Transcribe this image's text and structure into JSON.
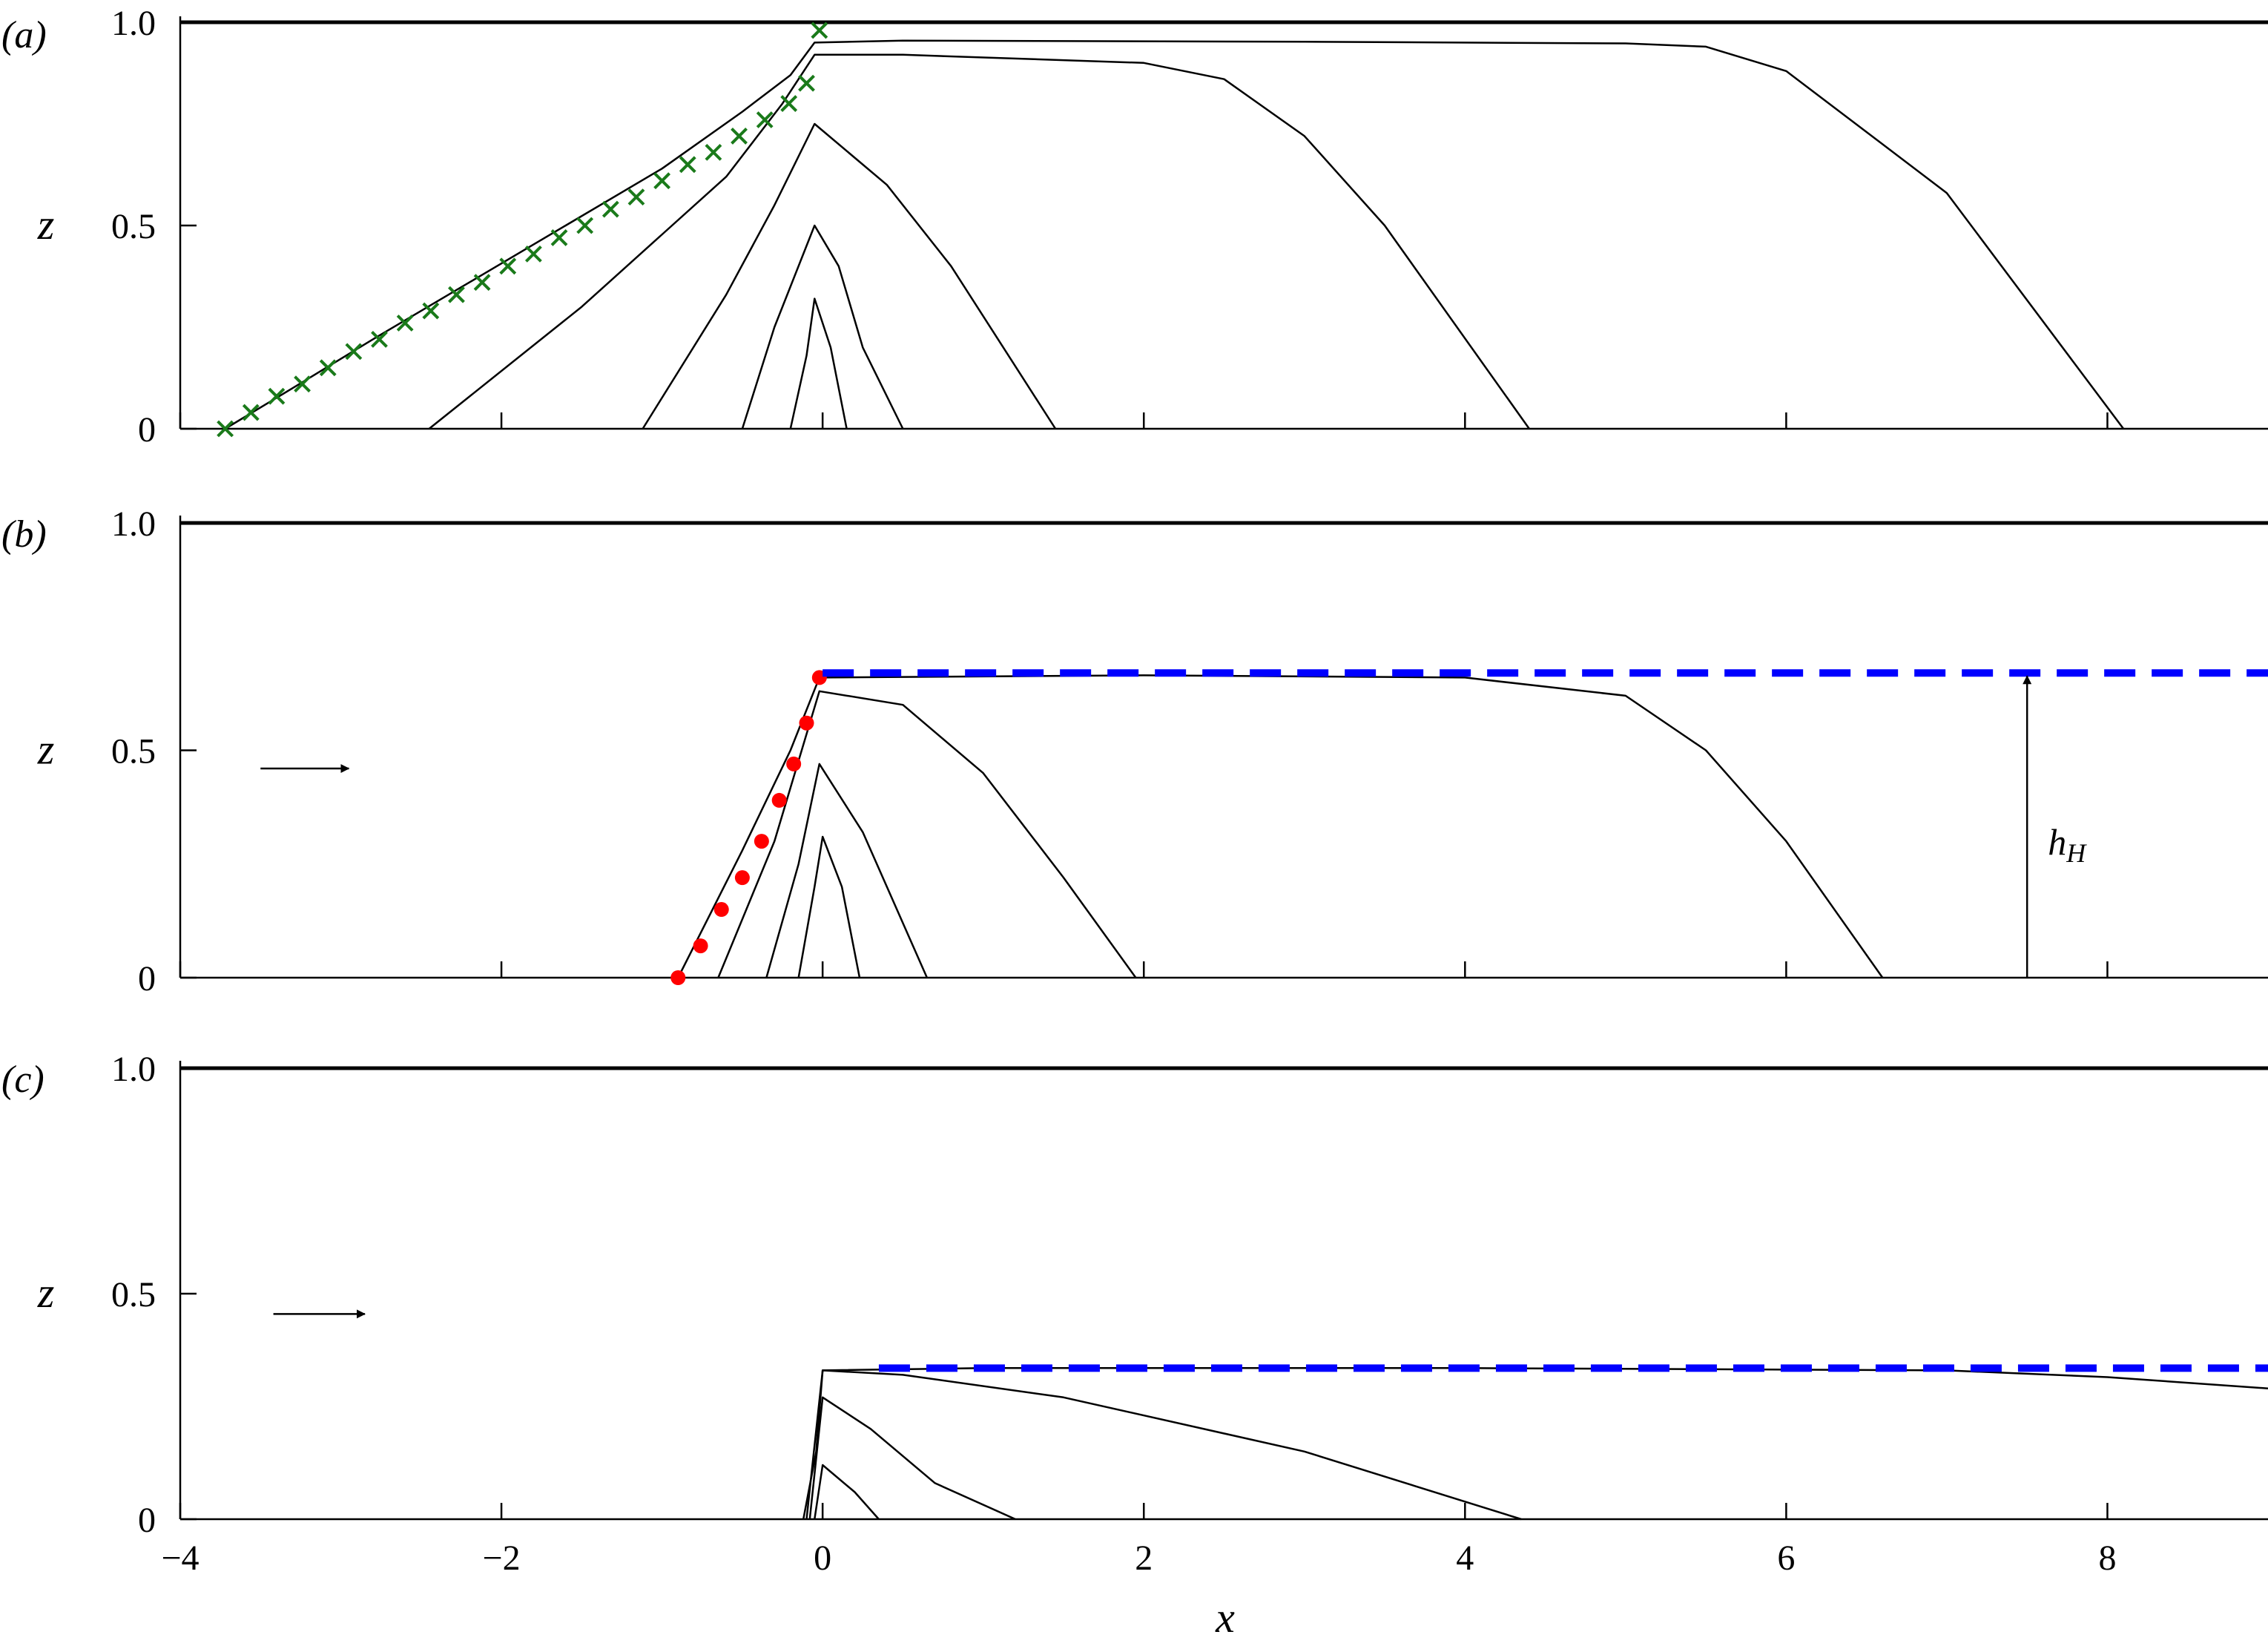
{
  "figure": {
    "xlabel": "x",
    "xticks": [
      "−4",
      "−2",
      "0",
      "2",
      "4",
      "6",
      "8"
    ],
    "xtick_values": [
      -4,
      -2,
      0,
      2,
      4,
      6,
      8
    ],
    "xlim": [
      -4,
      9
    ],
    "colors": {
      "curves": "#000000",
      "crosses": "#1a7a1a",
      "dots": "#ff0000",
      "dashed": "#0000ff"
    }
  },
  "chart_data": [
    {
      "type": "line",
      "panel_label": "(a)",
      "ylabel": "z",
      "yticks": [
        "0",
        "0.5",
        "1.0"
      ],
      "ytick_values": [
        0,
        0.5,
        1.0
      ],
      "ylim": [
        0,
        1.0
      ],
      "top_boundary": 1.0,
      "series": [
        {
          "kind": "curve",
          "points": [
            [
              -3.72,
              0
            ],
            [
              -3.3,
              0.1
            ],
            [
              -2.8,
              0.22
            ],
            [
              -2.2,
              0.36
            ],
            [
              -1.6,
              0.5
            ],
            [
              -1,
              0.64
            ],
            [
              -0.5,
              0.78
            ],
            [
              -0.2,
              0.87
            ],
            [
              -0.05,
              0.95
            ],
            [
              0.5,
              0.955
            ],
            [
              3,
              0.952
            ],
            [
              5,
              0.948
            ],
            [
              5.5,
              0.94
            ],
            [
              6,
              0.88
            ],
            [
              7,
              0.58
            ],
            [
              8.1,
              0
            ]
          ]
        },
        {
          "kind": "curve",
          "points": [
            [
              -2.45,
              0
            ],
            [
              -1.5,
              0.3
            ],
            [
              -0.6,
              0.62
            ],
            [
              -0.25,
              0.8
            ],
            [
              -0.05,
              0.92
            ],
            [
              0.5,
              0.92
            ],
            [
              2,
              0.9
            ],
            [
              2.5,
              0.86
            ],
            [
              3,
              0.72
            ],
            [
              3.5,
              0.5
            ],
            [
              4.4,
              0
            ]
          ]
        },
        {
          "kind": "curve",
          "points": [
            [
              -1.12,
              0
            ],
            [
              -0.6,
              0.33
            ],
            [
              -0.3,
              0.55
            ],
            [
              -0.05,
              0.75
            ],
            [
              0.4,
              0.6
            ],
            [
              0.8,
              0.4
            ],
            [
              1.45,
              0
            ]
          ]
        },
        {
          "kind": "curve",
          "points": [
            [
              -0.5,
              0
            ],
            [
              -0.3,
              0.25
            ],
            [
              -0.05,
              0.5
            ],
            [
              0.1,
              0.4
            ],
            [
              0.25,
              0.2
            ],
            [
              0.5,
              0
            ]
          ]
        },
        {
          "kind": "curve",
          "points": [
            [
              -0.2,
              0
            ],
            [
              -0.1,
              0.18
            ],
            [
              -0.05,
              0.32
            ],
            [
              0.05,
              0.2
            ],
            [
              0.15,
              0
            ]
          ]
        },
        {
          "kind": "crosses",
          "points": [
            [
              -3.72,
              0
            ],
            [
              -3.56,
              0.04
            ],
            [
              -3.4,
              0.08
            ],
            [
              -3.24,
              0.11
            ],
            [
              -3.08,
              0.15
            ],
            [
              -2.92,
              0.19
            ],
            [
              -2.76,
              0.22
            ],
            [
              -2.6,
              0.26
            ],
            [
              -2.44,
              0.29
            ],
            [
              -2.28,
              0.33
            ],
            [
              -2.12,
              0.36
            ],
            [
              -1.96,
              0.4
            ],
            [
              -1.8,
              0.43
            ],
            [
              -1.64,
              0.47
            ],
            [
              -1.48,
              0.5
            ],
            [
              -1.32,
              0.54
            ],
            [
              -1.16,
              0.57
            ],
            [
              -1,
              0.61
            ],
            [
              -0.84,
              0.65
            ],
            [
              -0.68,
              0.68
            ],
            [
              -0.52,
              0.72
            ],
            [
              -0.36,
              0.76
            ],
            [
              -0.21,
              0.8
            ],
            [
              -0.1,
              0.85
            ],
            [
              -0.02,
              0.98
            ]
          ]
        }
      ]
    },
    {
      "type": "line",
      "panel_label": "(b)",
      "ylabel": "z",
      "yticks": [
        "0",
        "0.5",
        "1.0"
      ],
      "ytick_values": [
        0,
        0.5,
        1.0
      ],
      "ylim": [
        0,
        1.0
      ],
      "top_boundary": 1.0,
      "h_level": 0.67,
      "annotation": "h",
      "annotation_sub": "H",
      "annotation_x": 7.5,
      "flow_arrow": {
        "x_from": -3.5,
        "x_to": -2.95,
        "z": 0.46
      },
      "series": [
        {
          "kind": "curve",
          "points": [
            [
              -0.9,
              0
            ],
            [
              -0.5,
              0.28
            ],
            [
              -0.2,
              0.5
            ],
            [
              -0.02,
              0.66
            ],
            [
              2,
              0.665
            ],
            [
              4,
              0.66
            ],
            [
              5,
              0.62
            ],
            [
              5.5,
              0.5
            ],
            [
              6,
              0.3
            ],
            [
              6.6,
              0
            ]
          ]
        },
        {
          "kind": "curve",
          "points": [
            [
              -0.65,
              0
            ],
            [
              -0.3,
              0.3
            ],
            [
              -0.02,
              0.63
            ],
            [
              0.5,
              0.6
            ],
            [
              1,
              0.45
            ],
            [
              1.5,
              0.22
            ],
            [
              1.95,
              0
            ]
          ]
        },
        {
          "kind": "curve",
          "points": [
            [
              -0.35,
              0
            ],
            [
              -0.15,
              0.25
            ],
            [
              -0.02,
              0.47
            ],
            [
              0.25,
              0.32
            ],
            [
              0.65,
              0
            ]
          ]
        },
        {
          "kind": "curve",
          "points": [
            [
              -0.15,
              0
            ],
            [
              -0.05,
              0.2
            ],
            [
              0,
              0.31
            ],
            [
              0.12,
              0.2
            ],
            [
              0.23,
              0
            ]
          ]
        },
        {
          "kind": "dots",
          "points": [
            [
              -0.9,
              0
            ],
            [
              -0.76,
              0.07
            ],
            [
              -0.63,
              0.15
            ],
            [
              -0.5,
              0.22
            ],
            [
              -0.38,
              0.3
            ],
            [
              -0.27,
              0.39
            ],
            [
              -0.18,
              0.47
            ],
            [
              -0.1,
              0.56
            ],
            [
              -0.02,
              0.66
            ]
          ]
        },
        {
          "kind": "dashed",
          "points": [
            [
              0,
              0.67
            ],
            [
              9,
              0.67
            ]
          ]
        }
      ]
    },
    {
      "type": "line",
      "panel_label": "(c)",
      "ylabel": "z",
      "yticks": [
        "0",
        "0.5",
        "1.0"
      ],
      "ytick_values": [
        0,
        0.5,
        1.0
      ],
      "ylim": [
        0,
        1.0
      ],
      "top_boundary": 1.0,
      "h_level": 0.335,
      "flow_arrow": {
        "x_from": -3.42,
        "x_to": -2.85,
        "z": 0.455
      },
      "series": [
        {
          "kind": "curve",
          "points": [
            [
              -0.12,
              0
            ],
            [
              -0.04,
              0.15
            ],
            [
              0,
              0.33
            ],
            [
              1,
              0.335
            ],
            [
              4,
              0.335
            ],
            [
              7,
              0.33
            ],
            [
              8,
              0.315
            ],
            [
              9,
              0.29
            ]
          ]
        },
        {
          "kind": "curve",
          "points": [
            [
              -0.1,
              0
            ],
            [
              0,
              0.33
            ],
            [
              0.5,
              0.32
            ],
            [
              1.5,
              0.27
            ],
            [
              3,
              0.15
            ],
            [
              4.35,
              0
            ]
          ]
        },
        {
          "kind": "curve",
          "points": [
            [
              -0.08,
              0
            ],
            [
              0,
              0.27
            ],
            [
              0.3,
              0.2
            ],
            [
              0.7,
              0.08
            ],
            [
              1.2,
              0
            ]
          ]
        },
        {
          "kind": "curve",
          "points": [
            [
              -0.05,
              0
            ],
            [
              0,
              0.12
            ],
            [
              0.2,
              0.06
            ],
            [
              0.35,
              0
            ]
          ]
        },
        {
          "kind": "dashed",
          "points": [
            [
              0.35,
              0.335
            ],
            [
              9,
              0.335
            ]
          ]
        }
      ]
    }
  ]
}
